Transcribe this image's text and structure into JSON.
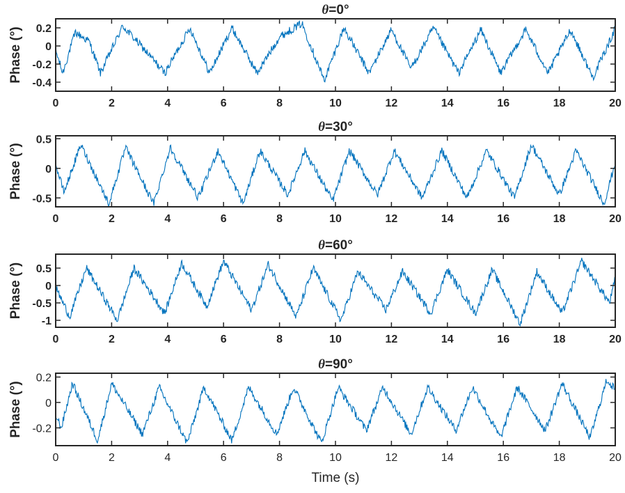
{
  "chart_data": [
    {
      "type": "line",
      "title": "θ=0°",
      "title_symbol": "θ",
      "title_rest": "=0°",
      "ylabel": "Phase (°)",
      "xlabel": "",
      "xlim": [
        0,
        20
      ],
      "ylim": [
        -0.5,
        0.3
      ],
      "xticks": [
        0,
        2,
        4,
        6,
        8,
        10,
        12,
        14,
        16,
        18,
        20
      ],
      "yticks": [
        -0.4,
        -0.2,
        0,
        0.2
      ],
      "ytick_labels": [
        "-0.4",
        "-0.2",
        "0",
        "0.2"
      ],
      "tick_weight": "bold",
      "color": "#0072BD",
      "series": [
        {
          "x": [
            0,
            0.25,
            0.7,
            1.2,
            1.6,
            2.4,
            3.2,
            3.9,
            4.8,
            5.5,
            6.3,
            7.2,
            8.0,
            8.8,
            9.6,
            10.3,
            11.2,
            12.0,
            12.7,
            13.5,
            14.4,
            15.2,
            15.9,
            16.8,
            17.6,
            18.4,
            19.2,
            19.8,
            20.0
          ],
          "y": [
            -0.05,
            -0.3,
            0.15,
            0.05,
            -0.3,
            0.22,
            -0.05,
            -0.3,
            0.2,
            -0.3,
            0.2,
            -0.3,
            0.1,
            0.25,
            -0.38,
            0.2,
            -0.3,
            0.18,
            -0.25,
            0.2,
            -0.3,
            0.18,
            -0.3,
            0.18,
            -0.3,
            0.18,
            -0.35,
            0.05,
            0.2
          ]
        }
      ]
    },
    {
      "type": "line",
      "title": "θ=30°",
      "title_symbol": "θ",
      "title_rest": "=30°",
      "ylabel": "Phase (°)",
      "xlabel": "",
      "xlim": [
        0,
        20
      ],
      "ylim": [
        -0.65,
        0.55
      ],
      "xticks": [
        0,
        2,
        4,
        6,
        8,
        10,
        12,
        14,
        16,
        18,
        20
      ],
      "yticks": [
        -0.5,
        0,
        0.5
      ],
      "ytick_labels": [
        "-0.5",
        "0",
        "0.5"
      ],
      "tick_weight": "bold",
      "color": "#0072BD",
      "series": [
        {
          "x": [
            0,
            0.3,
            0.9,
            1.9,
            2.5,
            3.5,
            4.1,
            5.1,
            5.8,
            6.7,
            7.3,
            8.3,
            8.9,
            9.9,
            10.5,
            11.5,
            12.1,
            13.1,
            13.8,
            14.7,
            15.4,
            16.4,
            17.0,
            18.0,
            18.6,
            19.6,
            20.0
          ],
          "y": [
            0.05,
            -0.4,
            0.4,
            -0.6,
            0.35,
            -0.6,
            0.35,
            -0.5,
            0.3,
            -0.6,
            0.3,
            -0.45,
            0.3,
            -0.55,
            0.3,
            -0.45,
            0.3,
            -0.5,
            0.3,
            -0.5,
            0.3,
            -0.5,
            0.4,
            -0.45,
            0.3,
            -0.6,
            0.1
          ]
        }
      ]
    },
    {
      "type": "line",
      "title": "θ=60°",
      "title_symbol": "θ",
      "title_rest": "=60°",
      "ylabel": "Phase (°)",
      "xlabel": "",
      "xlim": [
        0,
        20
      ],
      "ylim": [
        -1.2,
        0.9
      ],
      "xticks": [
        0,
        2,
        4,
        6,
        8,
        10,
        12,
        14,
        16,
        18,
        20
      ],
      "yticks": [
        -1,
        -0.5,
        0,
        0.5
      ],
      "ytick_labels": [
        "-1",
        "-0.5",
        "0",
        "0.5"
      ],
      "tick_weight": "bold",
      "color": "#0072BD",
      "series": [
        {
          "x": [
            0,
            0.5,
            1.1,
            2.2,
            2.8,
            3.9,
            4.5,
            5.4,
            6.0,
            7.0,
            7.6,
            8.6,
            9.2,
            10.2,
            10.8,
            11.8,
            12.4,
            13.4,
            14.0,
            15.0,
            15.6,
            16.6,
            17.2,
            18.1,
            18.8,
            19.8,
            20.0
          ],
          "y": [
            -0.05,
            -0.9,
            0.5,
            -1.0,
            0.5,
            -0.8,
            0.65,
            -0.6,
            0.7,
            -0.7,
            0.6,
            -0.9,
            0.5,
            -1.0,
            0.4,
            -0.7,
            0.4,
            -0.8,
            0.45,
            -0.8,
            0.45,
            -1.1,
            0.4,
            -0.8,
            0.7,
            -0.5,
            0.2
          ]
        }
      ]
    },
    {
      "type": "line",
      "title": "θ=90°",
      "title_symbol": "θ",
      "title_rest": "=90°",
      "ylabel": "Phase (°)",
      "xlabel": "Time (s)",
      "xlim": [
        0,
        20
      ],
      "ylim": [
        -0.34,
        0.23
      ],
      "xticks": [
        0,
        2,
        4,
        6,
        8,
        10,
        12,
        14,
        16,
        18,
        20
      ],
      "yticks": [
        -0.2,
        0,
        0.2
      ],
      "ytick_labels": [
        "-0.2",
        "0",
        "0.2"
      ],
      "tick_weight": "normal",
      "color": "#0072BD",
      "series": [
        {
          "x": [
            0,
            0.2,
            0.6,
            1.5,
            2.0,
            3.1,
            3.7,
            4.7,
            5.3,
            6.3,
            6.9,
            7.9,
            8.5,
            9.5,
            10.1,
            11.1,
            11.7,
            12.7,
            13.3,
            14.3,
            14.9,
            15.9,
            16.5,
            17.5,
            18.1,
            19.1,
            19.7,
            20.0
          ],
          "y": [
            -0.1,
            -0.2,
            0.15,
            -0.3,
            0.15,
            -0.25,
            0.12,
            -0.32,
            0.12,
            -0.3,
            0.12,
            -0.25,
            0.12,
            -0.32,
            0.12,
            -0.22,
            0.12,
            -0.25,
            0.12,
            -0.22,
            0.12,
            -0.28,
            0.12,
            -0.22,
            0.15,
            -0.28,
            0.18,
            0.1
          ]
        }
      ]
    }
  ]
}
